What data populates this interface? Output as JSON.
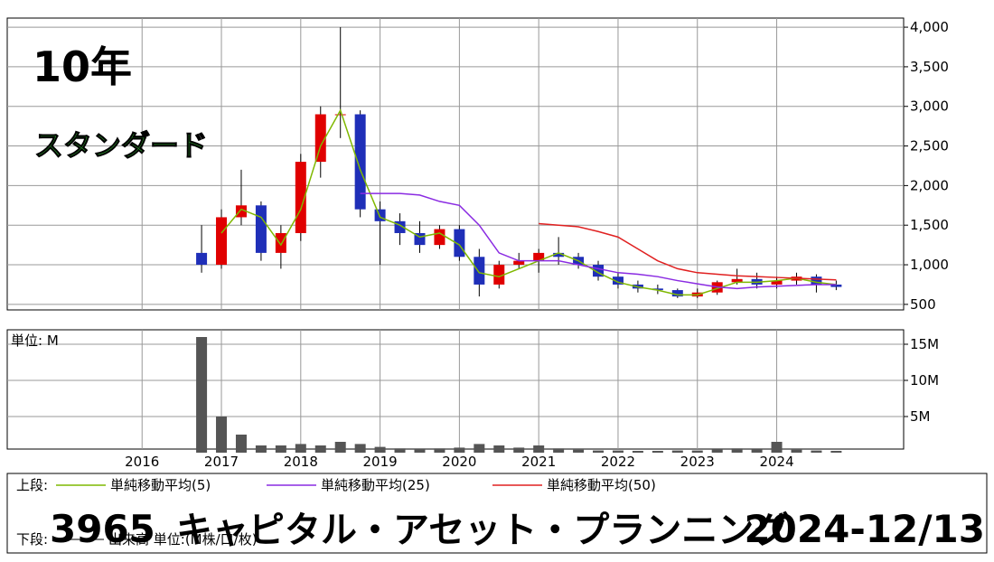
{
  "chart_data": [
    {
      "type": "candlestick",
      "annotations": [
        "10年",
        "スタンダード"
      ],
      "x": [
        2016.75,
        2017.0,
        2017.25,
        2017.5,
        2017.75,
        2018.0,
        2018.25,
        2018.5,
        2018.75,
        2019.0,
        2019.25,
        2019.5,
        2019.75,
        2020.0,
        2020.25,
        2020.5,
        2020.75,
        2021.0,
        2021.25,
        2021.5,
        2021.75,
        2022.0,
        2022.25,
        2022.5,
        2022.75,
        2023.0,
        2023.25,
        2023.5,
        2023.75,
        2024.0,
        2024.25,
        2024.5,
        2024.75
      ],
      "open": [
        1150,
        1000,
        1600,
        1750,
        1150,
        1400,
        2300,
        2900,
        2900,
        1700,
        1550,
        1400,
        1250,
        1450,
        1100,
        750,
        1000,
        1050,
        1150,
        1100,
        1000,
        850,
        750,
        700,
        680,
        600,
        650,
        780,
        820,
        750,
        800,
        850,
        750
      ],
      "high": [
        1500,
        1700,
        2200,
        1800,
        1500,
        2400,
        3000,
        4000,
        2950,
        1800,
        1650,
        1550,
        1500,
        1500,
        1200,
        1050,
        1150,
        1200,
        1350,
        1150,
        1050,
        900,
        800,
        750,
        700,
        700,
        800,
        950,
        900,
        850,
        900,
        880,
        800
      ],
      "low": [
        900,
        950,
        1500,
        1050,
        950,
        1300,
        2100,
        2600,
        1600,
        1000,
        1250,
        1150,
        1200,
        1050,
        600,
        700,
        950,
        900,
        1000,
        950,
        800,
        700,
        650,
        630,
        580,
        580,
        620,
        750,
        700,
        700,
        750,
        650,
        680
      ],
      "close": [
        1000,
        1600,
        1750,
        1150,
        1400,
        2300,
        2900,
        2900,
        1700,
        1550,
        1400,
        1250,
        1450,
        1100,
        750,
        1000,
        1050,
        1150,
        1100,
        1000,
        850,
        750,
        700,
        680,
        600,
        650,
        780,
        820,
        750,
        800,
        850,
        750,
        720
      ],
      "up_color": "#e00000",
      "down_color": "#1f2fb8",
      "legend_label": "上段:",
      "series": [
        {
          "name": "単純移動平均(5)",
          "color": "#7fb800",
          "values": [
            null,
            1400,
            1700,
            1600,
            1250,
            1700,
            2500,
            2950,
            2200,
            1600,
            1500,
            1350,
            1400,
            1250,
            900,
            850,
            950,
            1050,
            1150,
            1050,
            900,
            780,
            720,
            680,
            620,
            620,
            700,
            780,
            780,
            800,
            830,
            780,
            750
          ]
        },
        {
          "name": "単純移動平均(25)",
          "color": "#8a2be2",
          "values": [
            null,
            null,
            null,
            null,
            null,
            null,
            null,
            null,
            1900,
            1900,
            1900,
            1880,
            1800,
            1750,
            1500,
            1150,
            1050,
            1050,
            1050,
            1000,
            950,
            900,
            880,
            850,
            800,
            760,
            720,
            700,
            720,
            730,
            740,
            750,
            750
          ]
        },
        {
          "name": "単純移動平均(50)",
          "color": "#e02020",
          "values": [
            null,
            null,
            null,
            null,
            null,
            null,
            null,
            null,
            null,
            null,
            null,
            null,
            null,
            null,
            null,
            null,
            null,
            1520,
            1500,
            1480,
            1420,
            1350,
            1200,
            1050,
            950,
            900,
            880,
            860,
            850,
            840,
            830,
            820,
            810
          ]
        }
      ],
      "xlim": [
        2014.3,
        2025.6
      ],
      "xticks": [
        2016,
        2017,
        2018,
        2019,
        2020,
        2021,
        2022,
        2023,
        2024
      ],
      "ylim": [
        430,
        4115
      ],
      "yticks": [
        {
          "value": 500,
          "label": "500"
        },
        {
          "value": 1000,
          "label": "1,000"
        },
        {
          "value": 1500,
          "label": "1,500"
        },
        {
          "value": 2000,
          "label": "2,000"
        },
        {
          "value": 2500,
          "label": "2,500"
        },
        {
          "value": 3000,
          "label": "3,000"
        },
        {
          "value": 3500,
          "label": "3,500"
        },
        {
          "value": 4000,
          "label": "4,000"
        }
      ],
      "grid": true
    },
    {
      "type": "bar",
      "unit_label": "単位: M",
      "legend_label": "下段:",
      "series": [
        {
          "name": "出来高 単位:(M株/口/枚)",
          "color": "#555555",
          "values": [
            16000000,
            5000000,
            2500000,
            1000000,
            1000000,
            1200000,
            1000000,
            1500000,
            1200000,
            800000,
            600000,
            500000,
            600000,
            700000,
            1200000,
            1000000,
            700000,
            1000000,
            600000,
            400000,
            300000,
            300000,
            250000,
            250000,
            300000,
            300000,
            500000,
            600000,
            500000,
            1500000,
            400000,
            300000,
            250000
          ]
        }
      ],
      "xlim": [
        2014.3,
        2025.6
      ],
      "xticks": [
        2016,
        2017,
        2018,
        2019,
        2020,
        2021,
        2022,
        2023,
        2024
      ],
      "ylim": [
        0,
        17000000
      ],
      "yticks": [
        {
          "value": 5000000,
          "label": "5M"
        },
        {
          "value": 10000000,
          "label": "10M"
        },
        {
          "value": 15000000,
          "label": "15M"
        }
      ],
      "grid": true
    }
  ],
  "caption": {
    "code": "3965",
    "name": "キャピタル・アセット・プランニング",
    "date": "2024-12/13"
  }
}
